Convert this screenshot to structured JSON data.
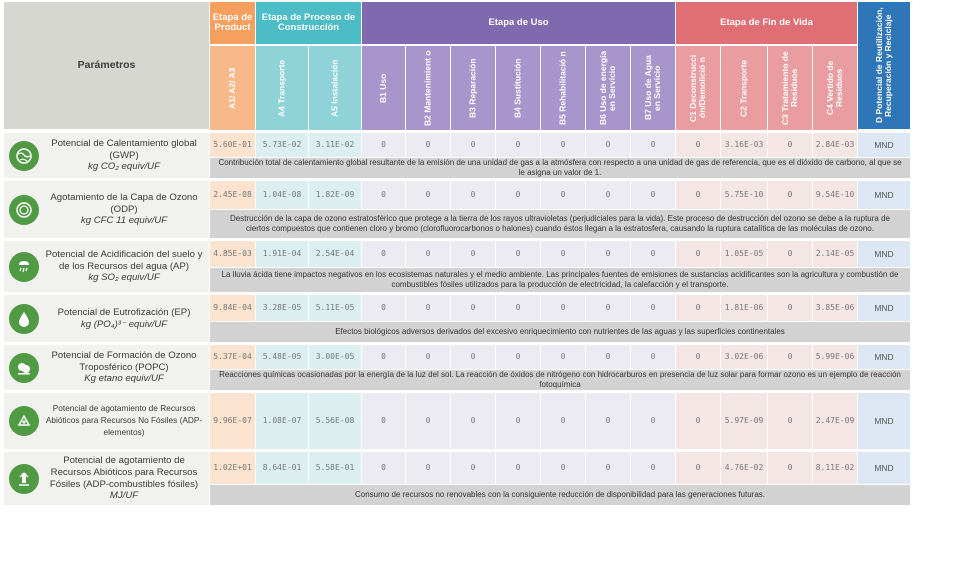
{
  "header": {
    "parametros": "Parámetros",
    "groups": {
      "produccion": "Etapa de Product",
      "construccion": "Etapa de Proceso de Construcción",
      "uso": "Etapa de Uso",
      "fin_vida": "Etapa de Fin de Vida",
      "d": "D Potencial de Reutilización, Recuperación y Reciclaje"
    },
    "subs": [
      "A1/ A2/ A3",
      "A4 Transporte",
      "A5 Instalación",
      "B1 Uso",
      "B2 Mantenimient o",
      "B3 Reparación",
      "B4 Sustitución",
      "B5 Rehabilitació n",
      "B6 Uso de energía en Servicio",
      "B7 Uso de Agua en Servicio",
      "C1 Deconstrucci ón/Demolició n",
      "C2 Transporte",
      "C3 Tratamiento de Residuos",
      "C4 Vertido de Residuos"
    ]
  },
  "rows": [
    {
      "icon": "globe-icon",
      "name": "Potencial de Calentamiento global (GWP)",
      "unit": "kg CO₂ equiv/UF",
      "values": [
        "5.60E-01",
        "5.73E-02",
        "3.11E-02",
        "0",
        "0",
        "0",
        "0",
        "0",
        "0",
        "0",
        "0",
        "3.16E-03",
        "0",
        "2.84E-03",
        "MND"
      ],
      "desc": "Contribución total de calentamiento global resultante de la emisión de una unidad de gas a la atmósfera con respecto a una unidad de gas de referencia, que es el dióxido de carbono, al que se le asigna un valor de 1."
    },
    {
      "icon": "ozone-globe-icon",
      "name": "Agotamiento de la Capa de Ozono (ODP)",
      "unit": "kg CFC 11 equiv/UF",
      "values": [
        "2.45E-08",
        "1.04E-08",
        "1.82E-09",
        "0",
        "0",
        "0",
        "0",
        "0",
        "0",
        "0",
        "0",
        "5.75E-10",
        "0",
        "9.54E-10",
        "MND"
      ],
      "desc": "Destrucción de la capa de ozono estratosférico que protege a la tierra de los rayos ultravioletas (perjudiciales para la vida). Este proceso de destrucción del ozono se debe a la ruptura de ciertos compuestos que contienen cloro y bromo (clorofluorocarbonos o halones) cuando éstos llegan a la estratosfera, causando la ruptura catalítica de las moléculas de ozono."
    },
    {
      "icon": "acid-rain-icon",
      "name": "Potencial de Acidificación del suelo y de los Recursos del agua (AP)",
      "unit": "kg SO₂ equiv/UF",
      "values": [
        "4.85E-03",
        "1.91E-04",
        "2.54E-04",
        "0",
        "0",
        "0",
        "0",
        "0",
        "0",
        "0",
        "0",
        "1.05E-05",
        "0",
        "2.14E-05",
        "MND"
      ],
      "desc": "La lluvia ácida tiene impactos negativos en los ecosistemas naturales y el medio ambiente. Las principales fuentes de emisiones de sustancias acidificantes son la agricultura y combustión de combustibles fósiles utilizados para la producción de electricidad, la calefacción y el transporte."
    },
    {
      "icon": "water-drop-icon",
      "name": "Potencial de Eutrofización (EP)",
      "unit": "kg (PO₄)³⁻ equiv/UF",
      "values": [
        "9.84E-04",
        "3.28E-05",
        "5.11E-05",
        "0",
        "0",
        "0",
        "0",
        "0",
        "0",
        "0",
        "0",
        "1.81E-06",
        "0",
        "3.85E-06",
        "MND"
      ],
      "desc": "Efectos biológicos adversos derivados del excesivo enriquecimiento con nutrientes de las aguas y las superficies continentales"
    },
    {
      "icon": "smog-icon",
      "name": "Potencial de Formación de Ozono Troposférico (POPC)",
      "unit": "Kg etano equiv/UF",
      "values": [
        "5.37E-04",
        "5.48E-05",
        "3.00E-05",
        "0",
        "0",
        "0",
        "0",
        "0",
        "0",
        "0",
        "0",
        "3.02E-06",
        "0",
        "5.99E-06",
        "MND"
      ],
      "desc": "Reacciones químicas ocasionadas por la energía de la luz del sol. La reacción de óxidos de nitrógeno con hidrocarburos en presencia de luz solar para formar ozono es un ejemplo de reacción fotoquímica"
    },
    {
      "icon": "mineral-resources-icon",
      "name": "Potencial de agotamiento de Recursos Abióticos para Recursos No Fósiles (ADP-elementos)",
      "unit": "",
      "values": [
        "9.96E-07",
        "1.08E-07",
        "5.56E-08",
        "0",
        "0",
        "0",
        "0",
        "0",
        "0",
        "0",
        "0",
        "5.97E-09",
        "0",
        "2.47E-09",
        "MND"
      ],
      "desc": ""
    },
    {
      "icon": "fossil-resources-icon",
      "name": "Potencial de agotamiento de Recursos Abióticos para Recursos Fósiles (ADP-combustibles fósiles)",
      "unit": "MJ/UF",
      "values": [
        "1.02E+01",
        "8.64E-01",
        "5.58E-01",
        "0",
        "0",
        "0",
        "0",
        "0",
        "0",
        "0",
        "0",
        "4.76E-02",
        "0",
        "8.11E-02",
        "MND"
      ],
      "desc": "Consumo de recursos no renovables con la consiguiente reducción de disponibilidad para las generaciones futuras."
    }
  ],
  "colors": {
    "produccion": "#f5a05f",
    "construccion": "#4cbcc6",
    "uso": "#7f6ab0",
    "fin_vida": "#df6f74",
    "d": "#2f76b8",
    "icon_green": "#4f9a43"
  }
}
